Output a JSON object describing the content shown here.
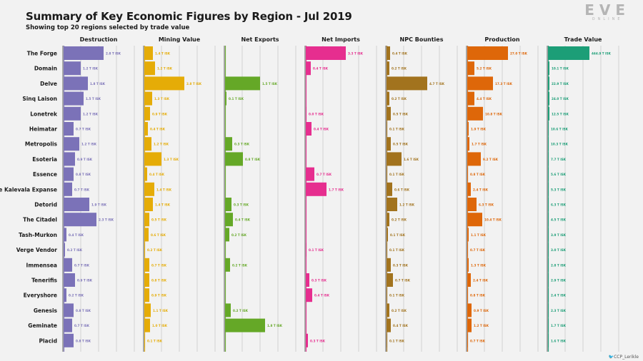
{
  "header": {
    "title": "Summary of Key Economic Figures by Region - Jul 2019",
    "subtitle": "Showing top 20 regions selected by trade value"
  },
  "logo": {
    "text": "EVE",
    "sub": "ONLINE"
  },
  "credit": {
    "handle_icon": "twitter-icon",
    "handle": "CCP_Lerikle"
  },
  "chart_data": {
    "type": "bar",
    "orientation": "horizontal",
    "title": "Summary of Key Economic Figures by Region - Jul 2019",
    "categories": [
      "The Forge",
      "Domain",
      "Delve",
      "Sinq Laison",
      "Lonetrek",
      "Heimatar",
      "Metropolis",
      "Esoteria",
      "Essence",
      "The Kalevala Expanse",
      "Detorid",
      "The Citadel",
      "Tash-Murkon",
      "Verge Vendor",
      "Immensea",
      "Tenerifis",
      "Everyshore",
      "Genesis",
      "Geminate",
      "Placid"
    ],
    "series": [
      {
        "name": "Destruction",
        "color": "#7b72b8",
        "max": 4.0,
        "values": [
          2.8,
          1.2,
          1.7,
          1.4,
          1.2,
          0.7,
          1.1,
          0.8,
          0.7,
          0.6,
          1.8,
          2.3,
          0.2,
          0.1,
          0.6,
          0.8,
          0.2,
          0.7,
          0.6,
          0.7
        ],
        "labels": [
          "2.8 T ISK",
          "1.2 T ISK",
          "1.8 T ISK",
          "1.5 T ISK",
          "1.2 T ISK",
          "0.7 T ISK",
          "1.2 T ISK",
          "0.9 T ISK",
          "0.8 T ISK",
          "0.7 T ISK",
          "1.9 T ISK",
          "2.3 T ISK",
          "0.4 T ISK",
          "0.2 T ISK",
          "0.7 T ISK",
          "0.9 T ISK",
          "0.2 T ISK",
          "0.8 T ISK",
          "0.7 T ISK",
          "0.8 T ISK"
        ]
      },
      {
        "name": "Mining Value",
        "color": "#e5ac07",
        "max": 4.0,
        "values": [
          0.6,
          0.75,
          2.8,
          0.55,
          0.4,
          0.25,
          0.5,
          1.2,
          0.2,
          0.7,
          0.6,
          0.35,
          0.3,
          0.05,
          0.35,
          0.35,
          0.35,
          0.45,
          0.4,
          0.05
        ],
        "labels": [
          "1.4 T ISK",
          "1.2 T ISK",
          "2.8 T ISK",
          "1.3 T ISK",
          "0.9 T ISK",
          "0.4 T ISK",
          "1.2 T ISK",
          "1.3 T ISK",
          "0.4 T ISK",
          "1.4 T ISK",
          "1.4 T ISK",
          "0.5 T ISK",
          "0.6 T ISK",
          "0.2 T ISK",
          "0.7 T ISK",
          "0.8 T ISK",
          "0.9 T ISK",
          "1.1 T ISK",
          "1.0 T ISK",
          "0.1 T ISK"
        ]
      },
      {
        "name": "Net Exports",
        "color": "#65a827",
        "max": 4.0,
        "values": [
          0,
          0,
          2.45,
          0.1,
          0,
          0,
          0.5,
          1.25,
          0,
          0,
          0.45,
          0.55,
          0.3,
          0,
          0.35,
          0,
          0,
          0.4,
          2.8,
          0
        ],
        "labels": [
          "",
          "",
          "1.5 T ISK",
          "0.1 T ISK",
          "",
          "",
          "0.3 T ISK",
          "0.8 T ISK",
          "",
          "",
          "0.3 T ISK",
          "0.4 T ISK",
          "0.2 T ISK",
          "",
          "0.2 T ISK",
          "",
          "",
          "0.2 T ISK",
          "1.8 T ISK",
          ""
        ]
      },
      {
        "name": "Net Imports",
        "color": "#e62e8f",
        "max": 4.0,
        "values": [
          2.8,
          0.35,
          0,
          0,
          0.05,
          0.4,
          0,
          0,
          0.6,
          1.45,
          0,
          0,
          0,
          0.05,
          0,
          0.25,
          0.45,
          0,
          0,
          0.15
        ],
        "labels": [
          "3.3 T ISK",
          "0.4 T ISK",
          "",
          "",
          "0.0 T ISK",
          "0.4 T ISK",
          "",
          "",
          "0.7 T ISK",
          "1.7 T ISK",
          "",
          "",
          "",
          "0.1 T ISK",
          "",
          "0.3 T ISK",
          "0.4 T ISK",
          "",
          "",
          "0.3 T ISK"
        ]
      },
      {
        "name": "NPC Bounties",
        "color": "#a2731e",
        "max": 4.0,
        "values": [
          0.25,
          0.2,
          2.85,
          0.2,
          0.3,
          0.05,
          0.3,
          1.05,
          0.05,
          0.4,
          0.75,
          0.2,
          0.1,
          0.05,
          0.3,
          0.45,
          0.05,
          0.2,
          0.3,
          0.05
        ],
        "labels": [
          "0.4 T ISK",
          "0.2 T ISK",
          "4.7 T ISK",
          "0.2 T ISK",
          "0.5 T ISK",
          "0.1 T ISK",
          "0.5 T ISK",
          "1.6 T ISK",
          "0.1 T ISK",
          "0.6 T ISK",
          "1.2 T ISK",
          "0.2 T ISK",
          "0.1 T ISK",
          "0.1 T ISK",
          "0.3 T ISK",
          "0.7 T ISK",
          "0.1 T ISK",
          "0.2 T ISK",
          "0.4 T ISK",
          "0.1 T ISK"
        ]
      },
      {
        "name": "Production",
        "color": "#de6709",
        "max": 4.0,
        "values": [
          2.85,
          0.5,
          1.8,
          0.5,
          1.1,
          0.1,
          0.15,
          0.95,
          0.05,
          0.25,
          0.65,
          1.05,
          0.1,
          0.05,
          0.1,
          0.25,
          0.05,
          0.3,
          0.3,
          0.05
        ],
        "labels": [
          "27.0 T ISK",
          "5.2 T ISK",
          "17.3 T ISK",
          "4.4 T ISK",
          "10.8 T ISK",
          "1.9 T ISK",
          "1.7 T ISK",
          "9.2 T ISK",
          "0.8 T ISK",
          "2.4 T ISK",
          "6.3 T ISK",
          "10.4 T ISK",
          "1.1 T ISK",
          "0.7 T ISK",
          "1.3 T ISK",
          "2.4 T ISK",
          "0.8 T ISK",
          "0.9 T ISK",
          "1.2 T ISK",
          "0.7 T ISK"
        ]
      },
      {
        "name": "Trade Value",
        "color": "#1c9e77",
        "max": 4.0,
        "values": [
          2.9,
          0.1,
          0.1,
          0.1,
          0.1,
          0.05,
          0.05,
          0.05,
          0.05,
          0.05,
          0.05,
          0.05,
          0.05,
          0.05,
          0.05,
          0.05,
          0.05,
          0.05,
          0.05,
          0.05
        ],
        "labels": [
          "444.9 T ISK",
          "10.1 T ISK",
          "22.9 T ISK",
          "24.0 T ISK",
          "12.5 T ISK",
          "10.6 T ISK",
          "10.3 T ISK",
          "7.7 T ISK",
          "5.6 T ISK",
          "5.3 T ISK",
          "6.3 T ISK",
          "4.5 T ISK",
          "3.9 T ISK",
          "3.0 T ISK",
          "2.8 T ISK",
          "2.9 T ISK",
          "2.4 T ISK",
          "2.3 T ISK",
          "1.7 T ISK",
          "1.6 T ISK"
        ]
      }
    ]
  }
}
